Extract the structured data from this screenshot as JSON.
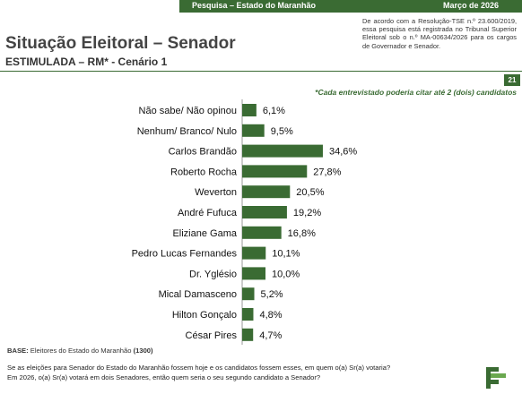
{
  "header": {
    "survey_label": "Pesquisa – Estado do Maranhão",
    "date_label": "Março de 2026",
    "legal_text": "De acordo com a Resolução-TSE n.º 23.600/2019, essa pesquisa está registrada no Tribunal Superior Eleitoral sob o n.º MA-00634/2026 para os cargos de Governador e Senador."
  },
  "page": {
    "title": "Situação Eleitoral – Senador",
    "subtitle": "ESTIMULADA – RM* - Cenário 1",
    "page_number": "21",
    "note": "*Cada entrevistado poderia citar até 2 (dois) candidatos"
  },
  "chart_data": {
    "type": "bar",
    "orientation": "horizontal",
    "categories": [
      "Não sabe/ Não opinou",
      "Nenhum/ Branco/ Nulo",
      "Carlos Brandão",
      "Roberto Rocha",
      "Weverton",
      "André Fufuca",
      "Eliziane Gama",
      "Pedro Lucas Fernandes",
      "Dr. Yglésio",
      "Mical Damasceno",
      "Hilton Gonçalo",
      "César Pires"
    ],
    "values": [
      6.1,
      9.5,
      34.6,
      27.8,
      20.5,
      19.2,
      16.8,
      10.1,
      10.0,
      5.2,
      4.8,
      4.7
    ],
    "labels": [
      "6,1%",
      "9,5%",
      "34,6%",
      "27,8%",
      "20,5%",
      "19,2%",
      "16,8%",
      "10,1%",
      "10,0%",
      "5,2%",
      "4,8%",
      "4,7%"
    ],
    "xlim": [
      0,
      100
    ],
    "grid": false,
    "legend": "none",
    "bar_color": "#3a6b33"
  },
  "footer": {
    "base_label": "BASE:",
    "base_text": "Eleitores do Estado do Maranhão",
    "base_count": "(1300)",
    "question_1": "Se as eleições para Senador do Estado do Maranhão fossem hoje e os candidatos fossem esses, em quem o(a) Sr(a) votaria?",
    "question_2": "Em 2026, o(a) Sr(a) votará em dois Senadores, então quem seria o seu segundo candidato a Senador?"
  },
  "icons": {
    "logo": "brand-logo-icon"
  }
}
